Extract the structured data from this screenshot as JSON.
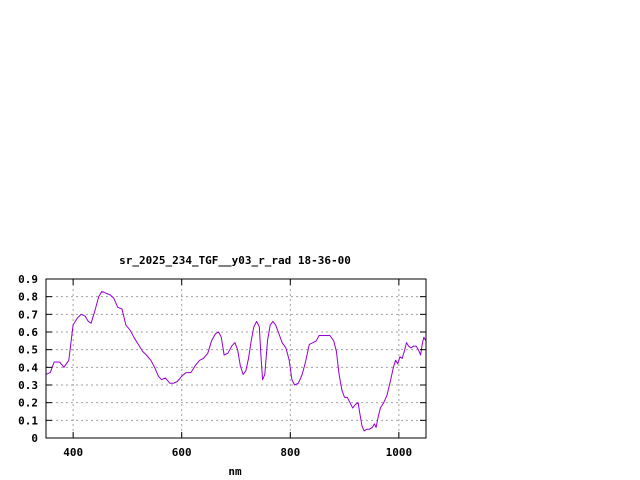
{
  "chart_data": {
    "type": "line",
    "title": "sr_2025_234_TGF__y03_r_rad 18-36-00",
    "xlabel": "nm",
    "ylabel": "",
    "xlim": [
      350,
      1050
    ],
    "ylim": [
      0,
      0.9
    ],
    "x_ticks": [
      400,
      600,
      800,
      1000
    ],
    "x_tick_labels": [
      "400",
      "600",
      "800",
      "1000"
    ],
    "y_ticks": [
      0,
      0.1,
      0.2,
      0.3,
      0.4,
      0.5,
      0.6,
      0.7,
      0.8,
      0.9
    ],
    "y_tick_labels": [
      "0",
      "0.1",
      "0.2",
      "0.3",
      "0.4",
      "0.5",
      "0.6",
      "0.7",
      "0.8",
      "0.9"
    ],
    "grid": true,
    "legend": "none",
    "colors": {
      "series": "#9400d3",
      "grid": "#a0a0a0",
      "axes": "#000000"
    },
    "series": [
      {
        "values": [
          [
            350,
            0.36
          ],
          [
            358,
            0.37
          ],
          [
            365,
            0.43
          ],
          [
            375,
            0.43
          ],
          [
            383,
            0.4
          ],
          [
            392,
            0.44
          ],
          [
            400,
            0.64
          ],
          [
            408,
            0.68
          ],
          [
            415,
            0.7
          ],
          [
            422,
            0.69
          ],
          [
            428,
            0.66
          ],
          [
            433,
            0.65
          ],
          [
            440,
            0.72
          ],
          [
            447,
            0.8
          ],
          [
            453,
            0.83
          ],
          [
            460,
            0.82
          ],
          [
            468,
            0.81
          ],
          [
            475,
            0.79
          ],
          [
            482,
            0.74
          ],
          [
            490,
            0.73
          ],
          [
            497,
            0.64
          ],
          [
            505,
            0.61
          ],
          [
            512,
            0.57
          ],
          [
            520,
            0.53
          ],
          [
            528,
            0.49
          ],
          [
            535,
            0.47
          ],
          [
            543,
            0.44
          ],
          [
            550,
            0.4
          ],
          [
            557,
            0.35
          ],
          [
            563,
            0.33
          ],
          [
            570,
            0.34
          ],
          [
            578,
            0.31
          ],
          [
            585,
            0.31
          ],
          [
            592,
            0.32
          ],
          [
            600,
            0.35
          ],
          [
            608,
            0.37
          ],
          [
            617,
            0.37
          ],
          [
            625,
            0.41
          ],
          [
            633,
            0.44
          ],
          [
            640,
            0.45
          ],
          [
            648,
            0.48
          ],
          [
            655,
            0.55
          ],
          [
            662,
            0.59
          ],
          [
            668,
            0.6
          ],
          [
            673,
            0.57
          ],
          [
            678,
            0.47
          ],
          [
            685,
            0.48
          ],
          [
            692,
            0.52
          ],
          [
            698,
            0.54
          ],
          [
            703,
            0.5
          ],
          [
            708,
            0.41
          ],
          [
            713,
            0.36
          ],
          [
            718,
            0.38
          ],
          [
            723,
            0.45
          ],
          [
            728,
            0.55
          ],
          [
            733,
            0.63
          ],
          [
            738,
            0.66
          ],
          [
            743,
            0.63
          ],
          [
            746,
            0.46
          ],
          [
            749,
            0.33
          ],
          [
            753,
            0.36
          ],
          [
            758,
            0.55
          ],
          [
            763,
            0.64
          ],
          [
            768,
            0.66
          ],
          [
            773,
            0.64
          ],
          [
            778,
            0.6
          ],
          [
            785,
            0.54
          ],
          [
            792,
            0.51
          ],
          [
            798,
            0.44
          ],
          [
            803,
            0.33
          ],
          [
            808,
            0.3
          ],
          [
            815,
            0.31
          ],
          [
            822,
            0.36
          ],
          [
            828,
            0.43
          ],
          [
            835,
            0.53
          ],
          [
            842,
            0.54
          ],
          [
            848,
            0.55
          ],
          [
            853,
            0.58
          ],
          [
            860,
            0.58
          ],
          [
            867,
            0.58
          ],
          [
            873,
            0.58
          ],
          [
            880,
            0.55
          ],
          [
            885,
            0.49
          ],
          [
            890,
            0.36
          ],
          [
            895,
            0.27
          ],
          [
            900,
            0.23
          ],
          [
            905,
            0.23
          ],
          [
            910,
            0.2
          ],
          [
            915,
            0.17
          ],
          [
            920,
            0.19
          ],
          [
            925,
            0.2
          ],
          [
            928,
            0.14
          ],
          [
            932,
            0.07
          ],
          [
            936,
            0.04
          ],
          [
            941,
            0.05
          ],
          [
            946,
            0.05
          ],
          [
            951,
            0.06
          ],
          [
            955,
            0.08
          ],
          [
            958,
            0.06
          ],
          [
            962,
            0.12
          ],
          [
            966,
            0.17
          ],
          [
            972,
            0.2
          ],
          [
            978,
            0.24
          ],
          [
            985,
            0.33
          ],
          [
            990,
            0.4
          ],
          [
            994,
            0.44
          ],
          [
            998,
            0.42
          ],
          [
            1002,
            0.46
          ],
          [
            1006,
            0.45
          ],
          [
            1010,
            0.49
          ],
          [
            1014,
            0.54
          ],
          [
            1018,
            0.52
          ],
          [
            1022,
            0.51
          ],
          [
            1027,
            0.52
          ],
          [
            1032,
            0.52
          ],
          [
            1036,
            0.5
          ],
          [
            1040,
            0.47
          ],
          [
            1043,
            0.53
          ],
          [
            1046,
            0.57
          ],
          [
            1050,
            0.55
          ]
        ]
      }
    ]
  }
}
